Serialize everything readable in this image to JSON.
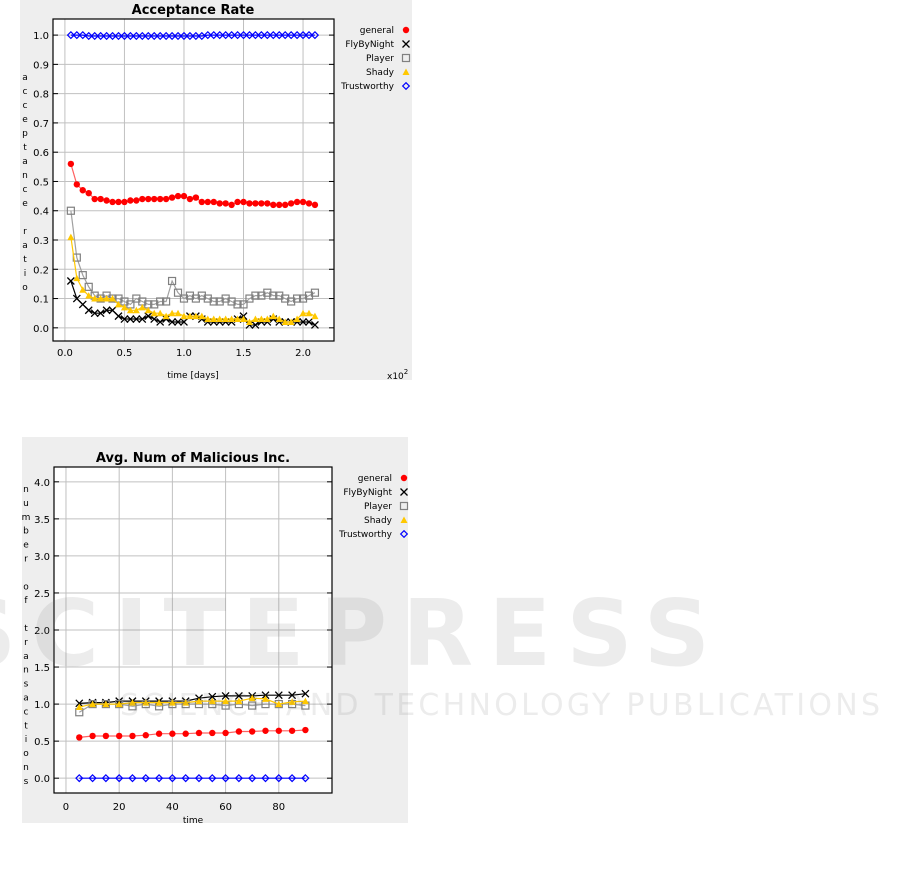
{
  "watermark": {
    "line1": "SCITEPRESS",
    "line2": "SCIENCE AND TECHNOLOGY PUBLICATIONS"
  },
  "chart_data": [
    {
      "type": "line",
      "title": "Acceptance Rate",
      "xlabel": "time [days]",
      "x_multiplier": "x10",
      "x_multiplier_exp": "2",
      "ylabel": "acceptance ratio",
      "xlim": [
        -0.1,
        2.26
      ],
      "ylim": [
        -0.045,
        1.055
      ],
      "xticks": [
        "0.0",
        "0.5",
        "1.0",
        "1.5",
        "2.0"
      ],
      "xtick_values": [
        0,
        0.5,
        1,
        1.5,
        2
      ],
      "yticks": [
        "0.0",
        "0.1",
        "0.2",
        "0.3",
        "0.4",
        "0.5",
        "0.6",
        "0.7",
        "0.8",
        "0.9",
        "1.0"
      ],
      "ytick_values": [
        0,
        0.1,
        0.2,
        0.3,
        0.4,
        0.5,
        0.6,
        0.7,
        0.8,
        0.9,
        1.0
      ],
      "grid": true,
      "legend": "right",
      "x": [
        0.05,
        0.1,
        0.15,
        0.2,
        0.25,
        0.3,
        0.35,
        0.4,
        0.45,
        0.5,
        0.55,
        0.6,
        0.65,
        0.7,
        0.75,
        0.8,
        0.85,
        0.9,
        0.95,
        1.0,
        1.05,
        1.1,
        1.15,
        1.2,
        1.25,
        1.3,
        1.35,
        1.4,
        1.45,
        1.5,
        1.55,
        1.6,
        1.65,
        1.7,
        1.75,
        1.8,
        1.85,
        1.9,
        1.95,
        2.0,
        2.05,
        2.1
      ],
      "series": [
        {
          "name": "general",
          "marker": "circle",
          "color": "#ff0000",
          "line": "#ff6060",
          "values": [
            0.56,
            0.49,
            0.47,
            0.46,
            0.44,
            0.44,
            0.435,
            0.43,
            0.43,
            0.43,
            0.435,
            0.435,
            0.44,
            0.44,
            0.44,
            0.44,
            0.44,
            0.445,
            0.45,
            0.45,
            0.44,
            0.445,
            0.43,
            0.43,
            0.43,
            0.425,
            0.425,
            0.42,
            0.43,
            0.43,
            0.425,
            0.425,
            0.425,
            0.425,
            0.42,
            0.42,
            0.42,
            0.425,
            0.43,
            0.43,
            0.425,
            0.42
          ]
        },
        {
          "name": "FlyByNight",
          "marker": "x",
          "color": "#000000",
          "line": "#000000",
          "values": [
            0.16,
            0.1,
            0.08,
            0.06,
            0.05,
            0.05,
            0.06,
            0.06,
            0.04,
            0.03,
            0.03,
            0.03,
            0.03,
            0.04,
            0.03,
            0.02,
            0.03,
            0.02,
            0.02,
            0.02,
            0.04,
            0.04,
            0.03,
            0.02,
            0.02,
            0.02,
            0.02,
            0.02,
            0.03,
            0.04,
            0.01,
            0.01,
            0.02,
            0.02,
            0.03,
            0.02,
            0.02,
            0.02,
            0.02,
            0.02,
            0.02,
            0.01
          ]
        },
        {
          "name": "Player",
          "marker": "square",
          "color": "#808080",
          "line": "#a0a0a0",
          "values": [
            0.4,
            0.24,
            0.18,
            0.14,
            0.11,
            0.1,
            0.11,
            0.1,
            0.1,
            0.09,
            0.08,
            0.1,
            0.09,
            0.08,
            0.08,
            0.09,
            0.09,
            0.16,
            0.12,
            0.1,
            0.11,
            0.1,
            0.11,
            0.1,
            0.09,
            0.09,
            0.1,
            0.09,
            0.08,
            0.08,
            0.1,
            0.11,
            0.11,
            0.12,
            0.11,
            0.11,
            0.1,
            0.09,
            0.1,
            0.1,
            0.11,
            0.12
          ]
        },
        {
          "name": "Shady",
          "marker": "triangle",
          "color": "#ffc800",
          "line": "#ffc800",
          "values": [
            0.31,
            0.17,
            0.13,
            0.11,
            0.1,
            0.1,
            0.1,
            0.1,
            0.08,
            0.07,
            0.06,
            0.06,
            0.07,
            0.06,
            0.05,
            0.05,
            0.04,
            0.05,
            0.05,
            0.04,
            0.04,
            0.04,
            0.04,
            0.03,
            0.03,
            0.03,
            0.03,
            0.03,
            0.03,
            0.03,
            0.02,
            0.03,
            0.03,
            0.03,
            0.04,
            0.03,
            0.02,
            0.02,
            0.03,
            0.05,
            0.05,
            0.04
          ]
        },
        {
          "name": "Trustworthy",
          "marker": "diamond",
          "color": "#0000ff",
          "line": "#0000ff",
          "values": [
            1.0,
            1.0,
            1.0,
            0.997,
            0.997,
            0.997,
            0.997,
            0.997,
            0.997,
            0.997,
            0.997,
            0.997,
            0.997,
            0.997,
            0.997,
            0.997,
            0.997,
            0.997,
            0.997,
            0.997,
            0.997,
            0.997,
            0.997,
            1.0,
            1.0,
            1.0,
            1.0,
            1.0,
            1.0,
            1.0,
            1.0,
            1.0,
            1.0,
            1.0,
            1.0,
            1.0,
            1.0,
            1.0,
            1.0,
            1.0,
            1.0,
            1.0
          ]
        }
      ]
    },
    {
      "type": "line",
      "title": "Avg. Num of Malicious Inc.",
      "xlabel": "time",
      "ylabel": "number of transactions",
      "xlim": [
        -4.5,
        100
      ],
      "ylim": [
        -0.2,
        4.2
      ],
      "xticks": [
        "0",
        "20",
        "40",
        "60",
        "80"
      ],
      "xtick_values": [
        0,
        20,
        40,
        60,
        80
      ],
      "yticks": [
        "0.0",
        "0.5",
        "1.0",
        "1.5",
        "2.0",
        "2.5",
        "3.0",
        "3.5",
        "4.0"
      ],
      "ytick_values": [
        0,
        0.5,
        1,
        1.5,
        2,
        2.5,
        3,
        3.5,
        4
      ],
      "grid": true,
      "legend": "right",
      "x": [
        5,
        10,
        15,
        20,
        25,
        30,
        35,
        40,
        45,
        50,
        55,
        60,
        65,
        70,
        75,
        80,
        85,
        90
      ],
      "series": [
        {
          "name": "general",
          "marker": "circle",
          "color": "#ff0000",
          "line": "#ff6060",
          "values": [
            0.55,
            0.57,
            0.57,
            0.57,
            0.57,
            0.58,
            0.6,
            0.6,
            0.6,
            0.61,
            0.61,
            0.61,
            0.63,
            0.63,
            0.64,
            0.64,
            0.64,
            0.65
          ]
        },
        {
          "name": "FlyByNight",
          "marker": "x",
          "color": "#000000",
          "line": "#000000",
          "values": [
            1.01,
            1.02,
            1.02,
            1.04,
            1.04,
            1.04,
            1.04,
            1.04,
            1.04,
            1.08,
            1.1,
            1.11,
            1.11,
            1.11,
            1.12,
            1.12,
            1.12,
            1.14
          ]
        },
        {
          "name": "Player",
          "marker": "square",
          "color": "#808080",
          "line": "#a0a0a0",
          "values": [
            0.89,
            1.0,
            1.0,
            1.0,
            0.97,
            1.0,
            0.97,
            1.0,
            1.0,
            1.0,
            1.0,
            0.98,
            1.0,
            0.98,
            1.0,
            1.0,
            1.0,
            0.98
          ]
        },
        {
          "name": "Shady",
          "marker": "triangle",
          "color": "#ffc800",
          "line": "#ffc800",
          "values": [
            0.96,
            1.0,
            1.0,
            1.0,
            1.02,
            1.02,
            1.02,
            1.02,
            1.02,
            1.04,
            1.04,
            1.04,
            1.04,
            1.08,
            1.07,
            1.0,
            1.03,
            1.04
          ]
        },
        {
          "name": "Trustworthy",
          "marker": "diamond",
          "color": "#0000ff",
          "line": "#0000ff",
          "values": [
            0,
            0,
            0,
            0,
            0,
            0,
            0,
            0,
            0,
            0,
            0,
            0,
            0,
            0,
            0,
            0,
            0,
            0
          ]
        }
      ]
    }
  ]
}
